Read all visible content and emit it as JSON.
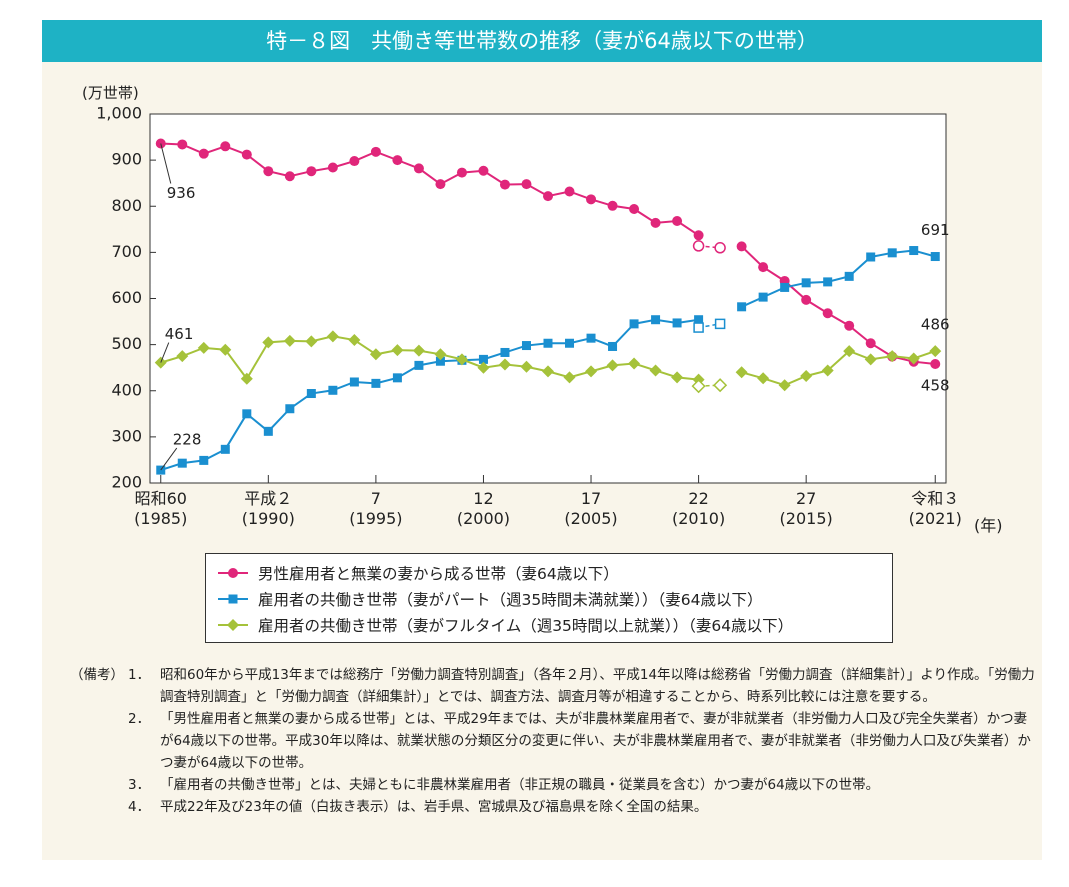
{
  "title": "特－８図　共働き等世帯数の推移（妻が64歳以下の世帯）",
  "chart_data": {
    "type": "line",
    "y_label": "(万世帯)",
    "x_label": "(年)",
    "x": [
      1985,
      1986,
      1987,
      1988,
      1989,
      1990,
      1991,
      1992,
      1993,
      1994,
      1995,
      1996,
      1997,
      1998,
      1999,
      2000,
      2001,
      2002,
      2003,
      2004,
      2005,
      2006,
      2007,
      2008,
      2009,
      2010,
      2011,
      2012,
      2013,
      2014,
      2015,
      2016,
      2017,
      2018,
      2019,
      2020,
      2021
    ],
    "xlim": [
      1984.5,
      2021.5
    ],
    "xticks": [
      {
        "value": 1985,
        "label": "昭和60\n(1985)"
      },
      {
        "value": 1990,
        "label": "平成２\n(1990)"
      },
      {
        "value": 1995,
        "label": "7\n(1995)"
      },
      {
        "value": 2000,
        "label": "12\n(2000)"
      },
      {
        "value": 2005,
        "label": "17\n(2005)"
      },
      {
        "value": 2010,
        "label": "22\n(2010)"
      },
      {
        "value": 2015,
        "label": "27\n(2015)"
      },
      {
        "value": 2021,
        "label": "令和３\n(2021)"
      }
    ],
    "ylim": [
      200,
      1000
    ],
    "yticks": [
      200,
      300,
      400,
      500,
      600,
      700,
      800,
      900,
      {
        "value": 1000,
        "label": "1,000"
      }
    ],
    "series": [
      {
        "name": "男性雇用者と無業の妻から成る世帯（妻64歳以下）",
        "color": "#e0267a",
        "marker": "circle",
        "values": [
          936,
          934,
          914,
          930,
          912,
          876,
          865,
          876,
          884,
          898,
          918,
          900,
          882,
          848,
          873,
          877,
          847,
          848,
          822,
          832,
          815,
          801,
          794,
          764,
          768,
          737,
          null,
          713,
          668,
          638,
          597,
          568,
          541,
          503,
          474,
          463,
          458
        ],
        "hollow_values": [
          null,
          null,
          null,
          null,
          null,
          null,
          null,
          null,
          null,
          null,
          null,
          null,
          null,
          null,
          null,
          null,
          null,
          null,
          null,
          null,
          null,
          null,
          null,
          null,
          null,
          714,
          710,
          null,
          null,
          null,
          null,
          null,
          null,
          null,
          null,
          null,
          null
        ]
      },
      {
        "name": "雇用者の共働き世帯（妻がパート（週35時間未満就業））（妻64歳以下）",
        "color": "#1a8fd0",
        "marker": "square",
        "values": [
          228,
          243,
          249,
          273,
          350,
          312,
          361,
          394,
          401,
          419,
          416,
          428,
          455,
          464,
          466,
          468,
          483,
          498,
          503,
          503,
          514,
          496,
          545,
          554,
          547,
          554,
          null,
          582,
          603,
          624,
          634,
          636,
          648,
          690,
          699,
          704,
          691
        ],
        "hollow_values": [
          null,
          null,
          null,
          null,
          null,
          null,
          null,
          null,
          null,
          null,
          null,
          null,
          null,
          null,
          null,
          null,
          null,
          null,
          null,
          null,
          null,
          null,
          null,
          null,
          null,
          537,
          545,
          null,
          null,
          null,
          null,
          null,
          null,
          null,
          null,
          null,
          null
        ]
      },
      {
        "name": "雇用者の共働き世帯（妻がフルタイム（週35時間以上就業））（妻64歳以下）",
        "color": "#a5c23a",
        "marker": "diamond",
        "values": [
          461,
          475,
          493,
          489,
          426,
          505,
          508,
          507,
          518,
          510,
          479,
          488,
          487,
          479,
          468,
          450,
          457,
          452,
          442,
          429,
          442,
          455,
          459,
          444,
          429,
          424,
          null,
          440,
          427,
          412,
          432,
          444,
          486,
          468,
          475,
          470,
          486
        ],
        "hollow_values": [
          null,
          null,
          null,
          null,
          null,
          null,
          null,
          null,
          null,
          null,
          null,
          null,
          null,
          null,
          null,
          null,
          null,
          null,
          null,
          null,
          null,
          null,
          null,
          null,
          null,
          410,
          412,
          null,
          null,
          null,
          null,
          null,
          null,
          null,
          null,
          null,
          null
        ]
      }
    ]
  },
  "notes": {
    "label": "（備考）",
    "items": [
      {
        "number": "1．",
        "text": "昭和60年から平成13年までは総務庁「労働力調査特別調査」（各年２月）、平成14年以降は総務省「労働力調査（詳細集計）」より作成。「労働力調査特別調査」と「労働力調査（詳細集計）」とでは、調査方法、調査月等が相違することから、時系列比較には注意を要する。"
      },
      {
        "number": "2．",
        "text": "「男性雇用者と無業の妻から成る世帯」とは、平成29年までは、夫が非農林業雇用者で、妻が非就業者（非労働力人口及び完全失業者）かつ妻が64歳以下の世帯。平成30年以降は、就業状態の分類区分の変更に伴い、夫が非農林業雇用者で、妻が非就業者（非労働力人口及び失業者）かつ妻が64歳以下の世帯。"
      },
      {
        "number": "3．",
        "text": "「雇用者の共働き世帯」とは、夫婦ともに非農林業雇用者（非正規の職員・従業員を含む）かつ妻が64歳以下の世帯。"
      },
      {
        "number": "4．",
        "text": "平成22年及び23年の値（白抜き表示）は、岩手県、宮城県及び福島県を除く全国の結果。"
      }
    ]
  }
}
